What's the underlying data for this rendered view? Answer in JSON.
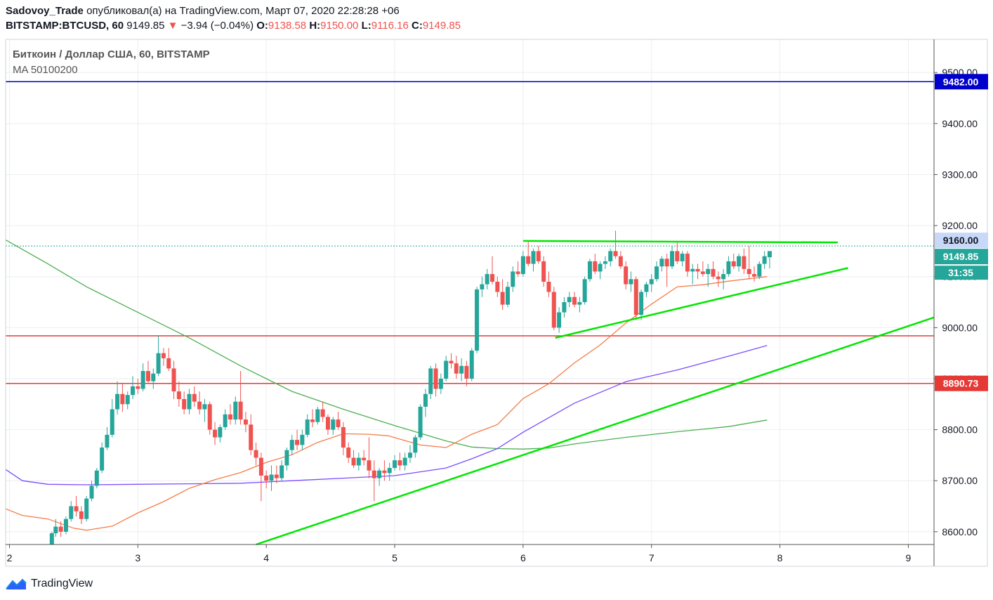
{
  "header": {
    "author": "Sadovoy_Trade",
    "published_text": "опубликовал(а) на TradingView.com, Март 07, 2020 22:28:28 +06",
    "symbol": "BITSTAMP:BTCUSD, 60",
    "last": "9149.85",
    "change_arrow": "▼",
    "change": "−3.94 (−0.04%)",
    "o_label": "O:",
    "o": "9138.58",
    "h_label": "H:",
    "h": "9150.00",
    "l_label": "L:",
    "l": "9116.16",
    "c_label": "C:",
    "c": "9149.85"
  },
  "legend": {
    "title": "Биткоин / Доллар США, 60, BITSTAMP",
    "indicator": "MA 50100200"
  },
  "footer": {
    "brand": "TradingView"
  },
  "colors": {
    "up": "#26a69a",
    "down": "#ef5350",
    "ma50": "#f57c47",
    "ma100": "#7b4dff",
    "ma200": "#4caf50",
    "trend": "#00e600",
    "blue_level": "#0000cc",
    "red_level": "#e53935"
  },
  "chart_data": {
    "type": "candlestick",
    "x_unit": "day of March 2020",
    "x_ticks": [
      "2",
      "3",
      "4",
      "5",
      "6",
      "7",
      "8",
      "9"
    ],
    "y_ticks": [
      "8600.00",
      "8700.00",
      "8800.00",
      "8900.00",
      "9000.00",
      "9100.00",
      "9200.00",
      "9300.00",
      "9400.00",
      "9500.00"
    ],
    "ylim": [
      8575,
      9565
    ],
    "xlim": [
      1.97,
      9.2
    ],
    "price_labels": {
      "level_blue": "9482.00",
      "level_green": "9160.00",
      "last_price": "9149.85",
      "countdown": "31:35",
      "level_red": "8890.73"
    },
    "levels": [
      {
        "name": "blue",
        "value": 9482.0
      },
      {
        "name": "red-upper",
        "value": 8984.0
      },
      {
        "name": "red-lower",
        "value": 8890.73
      },
      {
        "name": "last",
        "value": 9160.0
      }
    ],
    "trendlines": [
      {
        "name": "resistance",
        "x": [
          6.0,
          8.45
        ],
        "y": [
          9170,
          9167
        ]
      },
      {
        "name": "support-short",
        "x": [
          6.25,
          8.53
        ],
        "y": [
          8980,
          9117
        ]
      },
      {
        "name": "support-long",
        "x": [
          3.92,
          9.2
        ],
        "y": [
          8575,
          9020
        ]
      }
    ],
    "ma50": {
      "x": [
        1.97,
        2.1,
        2.3,
        2.5,
        2.6,
        2.8,
        3.0,
        3.2,
        3.4,
        3.6,
        3.8,
        4.0,
        4.2,
        4.4,
        4.6,
        4.8,
        4.95,
        5.2,
        5.4,
        5.6,
        5.8,
        6.0,
        6.2,
        6.4,
        6.6,
        6.8,
        7.0,
        7.2,
        7.4,
        7.6,
        7.8,
        7.9
      ],
      "y": [
        8645,
        8632,
        8625,
        8607,
        8603,
        8611,
        8637,
        8659,
        8685,
        8702,
        8716,
        8736,
        8751,
        8775,
        8792,
        8791,
        8788,
        8770,
        8765,
        8791,
        8810,
        8861,
        8890,
        8931,
        8966,
        9009,
        9046,
        9080,
        9084,
        9091,
        9097,
        9100
      ]
    },
    "ma100": {
      "x": [
        1.97,
        2.1,
        2.3,
        2.6,
        3.0,
        3.4,
        3.8,
        4.2,
        4.6,
        5.0,
        5.4,
        5.6,
        5.8,
        6.0,
        6.4,
        6.8,
        7.2,
        7.6,
        7.9
      ],
      "y": [
        8722,
        8700,
        8693,
        8692,
        8693,
        8694,
        8695,
        8700,
        8705,
        8710,
        8725,
        8743,
        8763,
        8795,
        8852,
        8894,
        8917,
        8944,
        8965
      ]
    },
    "ma200": {
      "x": [
        1.97,
        2.3,
        2.6,
        3.0,
        3.4,
        3.8,
        4.2,
        4.6,
        5.0,
        5.4,
        5.6,
        5.8,
        6.0,
        6.2,
        6.4,
        6.8,
        7.2,
        7.6,
        7.9
      ],
      "y": [
        9172,
        9125,
        9080,
        9030,
        8980,
        8925,
        8875,
        8840,
        8808,
        8778,
        8766,
        8763,
        8762,
        8764,
        8772,
        8785,
        8796,
        8806,
        8819
      ]
    },
    "candles": [
      [
        2.31,
        8520,
        8575,
        8510,
        8565
      ],
      [
        2.33,
        8565,
        8600,
        8560,
        8597
      ],
      [
        2.36,
        8597,
        8625,
        8590,
        8610
      ],
      [
        2.4,
        8610,
        8620,
        8590,
        8600
      ],
      [
        2.44,
        8600,
        8630,
        8595,
        8625
      ],
      [
        2.48,
        8625,
        8660,
        8620,
        8650
      ],
      [
        2.52,
        8650,
        8670,
        8630,
        8640
      ],
      [
        2.56,
        8640,
        8650,
        8615,
        8625
      ],
      [
        2.6,
        8625,
        8670,
        8620,
        8665
      ],
      [
        2.64,
        8665,
        8700,
        8660,
        8690
      ],
      [
        2.68,
        8690,
        8725,
        8685,
        8720
      ],
      [
        2.72,
        8720,
        8775,
        8715,
        8765
      ],
      [
        2.76,
        8765,
        8805,
        8760,
        8790
      ],
      [
        2.8,
        8790,
        8860,
        8785,
        8840
      ],
      [
        2.84,
        8840,
        8895,
        8830,
        8870
      ],
      [
        2.88,
        8870,
        8890,
        8835,
        8850
      ],
      [
        2.92,
        8850,
        8875,
        8840,
        8868
      ],
      [
        2.96,
        8868,
        8905,
        8860,
        8885
      ],
      [
        3.0,
        8885,
        8900,
        8870,
        8880
      ],
      [
        3.04,
        8880,
        8930,
        8875,
        8915
      ],
      [
        3.08,
        8915,
        8935,
        8890,
        8895
      ],
      [
        3.12,
        8895,
        8920,
        8880,
        8910
      ],
      [
        3.16,
        8910,
        8985,
        8905,
        8950
      ],
      [
        3.2,
        8950,
        8960,
        8925,
        8940
      ],
      [
        3.24,
        8940,
        8960,
        8915,
        8920
      ],
      [
        3.28,
        8920,
        8935,
        8860,
        8875
      ],
      [
        3.32,
        8875,
        8895,
        8845,
        8860
      ],
      [
        3.36,
        8860,
        8875,
        8830,
        8840
      ],
      [
        3.4,
        8840,
        8880,
        8830,
        8870
      ],
      [
        3.44,
        8870,
        8885,
        8845,
        8855
      ],
      [
        3.48,
        8855,
        8875,
        8830,
        8840
      ],
      [
        3.52,
        8840,
        8860,
        8815,
        8850
      ],
      [
        3.56,
        8850,
        8855,
        8790,
        8800
      ],
      [
        3.6,
        8800,
        8815,
        8770,
        8785
      ],
      [
        3.64,
        8785,
        8810,
        8775,
        8805
      ],
      [
        3.68,
        8805,
        8840,
        8800,
        8830
      ],
      [
        3.72,
        8830,
        8850,
        8810,
        8820
      ],
      [
        3.76,
        8820,
        8865,
        8810,
        8855
      ],
      [
        3.8,
        8855,
        8915,
        8810,
        8820
      ],
      [
        3.84,
        8820,
        8835,
        8795,
        8810
      ],
      [
        3.88,
        8810,
        8830,
        8750,
        8760
      ],
      [
        3.92,
        8760,
        8775,
        8730,
        8745
      ],
      [
        3.96,
        8745,
        8755,
        8660,
        8710
      ],
      [
        4.0,
        8710,
        8720,
        8685,
        8700
      ],
      [
        4.04,
        8700,
        8730,
        8680,
        8712
      ],
      [
        4.08,
        8712,
        8730,
        8695,
        8705
      ],
      [
        4.12,
        8705,
        8740,
        8700,
        8730
      ],
      [
        4.16,
        8730,
        8765,
        8720,
        8760
      ],
      [
        4.2,
        8760,
        8790,
        8750,
        8780
      ],
      [
        4.24,
        8780,
        8800,
        8760,
        8770
      ],
      [
        4.28,
        8770,
        8800,
        8760,
        8790
      ],
      [
        4.32,
        8790,
        8830,
        8785,
        8820
      ],
      [
        4.36,
        8820,
        8840,
        8805,
        8815
      ],
      [
        4.4,
        8815,
        8845,
        8810,
        8840
      ],
      [
        4.44,
        8840,
        8855,
        8815,
        8825
      ],
      [
        4.48,
        8825,
        8830,
        8790,
        8800
      ],
      [
        4.52,
        8800,
        8825,
        8790,
        8820
      ],
      [
        4.56,
        8820,
        8835,
        8800,
        8805
      ],
      [
        4.6,
        8805,
        8815,
        8750,
        8765
      ],
      [
        4.64,
        8765,
        8775,
        8735,
        8745
      ],
      [
        4.68,
        8745,
        8760,
        8725,
        8730
      ],
      [
        4.72,
        8730,
        8755,
        8720,
        8745
      ],
      [
        4.76,
        8745,
        8760,
        8730,
        8740
      ],
      [
        4.8,
        8740,
        8785,
        8705,
        8720
      ],
      [
        4.84,
        8720,
        8740,
        8660,
        8705
      ],
      [
        4.88,
        8705,
        8725,
        8690,
        8720
      ],
      [
        4.92,
        8720,
        8740,
        8700,
        8715
      ],
      [
        4.96,
        8715,
        8735,
        8700,
        8725
      ],
      [
        5.0,
        8725,
        8750,
        8720,
        8740
      ],
      [
        5.04,
        8740,
        8755,
        8720,
        8730
      ],
      [
        5.08,
        8730,
        8755,
        8720,
        8745
      ],
      [
        5.12,
        8745,
        8770,
        8735,
        8755
      ],
      [
        5.16,
        8755,
        8790,
        8745,
        8785
      ],
      [
        5.2,
        8785,
        8850,
        8780,
        8845
      ],
      [
        5.24,
        8845,
        8880,
        8825,
        8870
      ],
      [
        5.28,
        8870,
        8925,
        8860,
        8920
      ],
      [
        5.32,
        8920,
        8930,
        8865,
        8880
      ],
      [
        5.36,
        8880,
        8910,
        8870,
        8900
      ],
      [
        5.4,
        8900,
        8945,
        8895,
        8935
      ],
      [
        5.44,
        8935,
        8950,
        8920,
        8930
      ],
      [
        5.48,
        8930,
        8945,
        8900,
        8910
      ],
      [
        5.52,
        8910,
        8940,
        8895,
        8925
      ],
      [
        5.56,
        8925,
        8935,
        8885,
        8900
      ],
      [
        5.6,
        8900,
        8960,
        8895,
        8955
      ],
      [
        5.64,
        8955,
        9080,
        8950,
        9075
      ],
      [
        5.68,
        9075,
        9100,
        9060,
        9085
      ],
      [
        5.72,
        9085,
        9115,
        9075,
        9105
      ],
      [
        5.76,
        9105,
        9140,
        9085,
        9090
      ],
      [
        5.8,
        9090,
        9100,
        9060,
        9070
      ],
      [
        5.84,
        9070,
        9095,
        9035,
        9045
      ],
      [
        5.88,
        9045,
        9090,
        9040,
        9080
      ],
      [
        5.92,
        9080,
        9120,
        9070,
        9110
      ],
      [
        5.96,
        9110,
        9130,
        9100,
        9105
      ],
      [
        6.0,
        9105,
        9150,
        9100,
        9140
      ],
      [
        6.04,
        9140,
        9170,
        9120,
        9125
      ],
      [
        6.08,
        9125,
        9155,
        9110,
        9150
      ],
      [
        6.12,
        9150,
        9160,
        9125,
        9130
      ],
      [
        6.16,
        9130,
        9140,
        9080,
        9090
      ],
      [
        6.2,
        9090,
        9110,
        9060,
        9070
      ],
      [
        6.24,
        9070,
        9080,
        8995,
        9000
      ],
      [
        6.28,
        9000,
        9040,
        8990,
        9030
      ],
      [
        6.32,
        9030,
        9060,
        9020,
        9050
      ],
      [
        6.36,
        9050,
        9070,
        9040,
        9060
      ],
      [
        6.4,
        9060,
        9070,
        9040,
        9045
      ],
      [
        6.44,
        9045,
        9060,
        9030,
        9050
      ],
      [
        6.48,
        9050,
        9100,
        9045,
        9095
      ],
      [
        6.52,
        9095,
        9135,
        9090,
        9130
      ],
      [
        6.56,
        9130,
        9145,
        9105,
        9110
      ],
      [
        6.6,
        9110,
        9130,
        9095,
        9125
      ],
      [
        6.64,
        9125,
        9140,
        9115,
        9130
      ],
      [
        6.68,
        9130,
        9155,
        9120,
        9150
      ],
      [
        6.72,
        9150,
        9190,
        9135,
        9140
      ],
      [
        6.76,
        9140,
        9150,
        9115,
        9120
      ],
      [
        6.8,
        9120,
        9130,
        9075,
        9085
      ],
      [
        6.84,
        9085,
        9110,
        9070,
        9095
      ],
      [
        6.88,
        9095,
        9100,
        9015,
        9025
      ],
      [
        6.92,
        9025,
        9075,
        9015,
        9070
      ],
      [
        6.96,
        9070,
        9090,
        9060,
        9085
      ],
      [
        7.0,
        9085,
        9105,
        9070,
        9095
      ],
      [
        7.04,
        9095,
        9130,
        9090,
        9120
      ],
      [
        7.08,
        9120,
        9140,
        9110,
        9135
      ],
      [
        7.12,
        9135,
        9145,
        9080,
        9120
      ],
      [
        7.16,
        9120,
        9160,
        9115,
        9150
      ],
      [
        7.2,
        9150,
        9170,
        9125,
        9130
      ],
      [
        7.24,
        9130,
        9150,
        9120,
        9145
      ],
      [
        7.28,
        9145,
        9150,
        9100,
        9110
      ],
      [
        7.32,
        9110,
        9125,
        9085,
        9115
      ],
      [
        7.36,
        9115,
        9125,
        9095,
        9110
      ],
      [
        7.4,
        9110,
        9130,
        9100,
        9105
      ],
      [
        7.44,
        9105,
        9125,
        9080,
        9115
      ],
      [
        7.48,
        9115,
        9130,
        9095,
        9100
      ],
      [
        7.52,
        9100,
        9110,
        9080,
        9095
      ],
      [
        7.56,
        9095,
        9115,
        9075,
        9105
      ],
      [
        7.6,
        9105,
        9140,
        9100,
        9130
      ],
      [
        7.64,
        9130,
        9145,
        9115,
        9120
      ],
      [
        7.68,
        9120,
        9145,
        9110,
        9140
      ],
      [
        7.72,
        9140,
        9155,
        9105,
        9115
      ],
      [
        7.76,
        9115,
        9160,
        9095,
        9105
      ],
      [
        7.8,
        9105,
        9120,
        9090,
        9100
      ],
      [
        7.84,
        9100,
        9130,
        9095,
        9125
      ],
      [
        7.88,
        9125,
        9150,
        9115,
        9140
      ],
      [
        7.92,
        9138,
        9150,
        9116,
        9150
      ]
    ]
  }
}
